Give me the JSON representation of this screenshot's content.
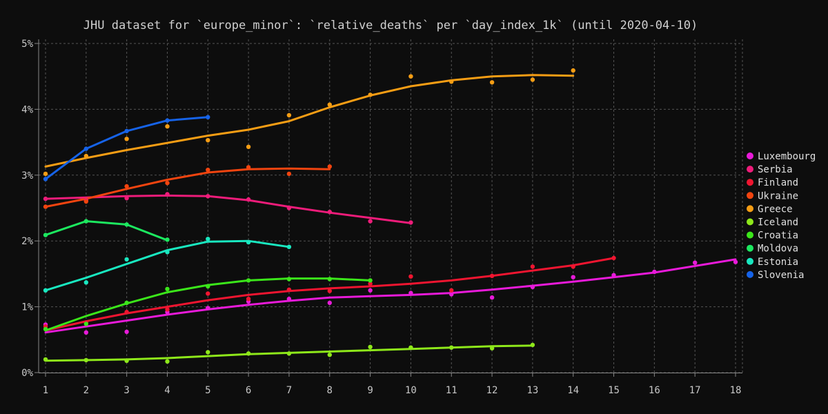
{
  "chart_data": {
    "type": "scatter",
    "title": "JHU dataset for `europe_minor`: `relative_deaths` per `day_index_1k` (until 2020-04-10)",
    "xlabel": "",
    "ylabel": "",
    "xlim": [
      1,
      18
    ],
    "ylim": [
      0,
      5
    ],
    "x_ticks": [
      "1",
      "2",
      "3",
      "4",
      "5",
      "6",
      "7",
      "8",
      "9",
      "10",
      "11",
      "12",
      "13",
      "14",
      "15",
      "16",
      "17",
      "18"
    ],
    "y_ticks": [
      "0%",
      "1%",
      "2%",
      "3%",
      "4%",
      "5%"
    ],
    "grid": true,
    "legend_position": "right",
    "series": [
      {
        "name": "Luxembourg",
        "color": "#e81ad9",
        "points": [
          [
            1,
            0.73
          ],
          [
            2,
            0.61
          ],
          [
            3,
            0.62
          ],
          [
            4,
            0.92
          ],
          [
            5,
            0.98
          ],
          [
            6,
            1.08
          ],
          [
            7,
            1.12
          ],
          [
            8,
            1.06
          ],
          [
            9,
            1.25
          ],
          [
            10,
            1.21
          ],
          [
            11,
            1.19
          ],
          [
            12,
            1.14
          ],
          [
            13,
            1.3
          ],
          [
            14,
            1.45
          ],
          [
            15,
            1.48
          ],
          [
            16,
            1.53
          ],
          [
            17,
            1.67
          ],
          [
            18,
            1.68
          ]
        ],
        "fit": [
          [
            1,
            0.61
          ],
          [
            2,
            0.7
          ],
          [
            3,
            0.79
          ],
          [
            4,
            0.88
          ],
          [
            5,
            0.96
          ],
          [
            6,
            1.03
          ],
          [
            7,
            1.09
          ],
          [
            8,
            1.14
          ],
          [
            9,
            1.16
          ],
          [
            10,
            1.18
          ],
          [
            11,
            1.21
          ],
          [
            12,
            1.26
          ],
          [
            13,
            1.32
          ],
          [
            14,
            1.38
          ],
          [
            15,
            1.45
          ],
          [
            16,
            1.52
          ],
          [
            17,
            1.62
          ],
          [
            18,
            1.72
          ]
        ]
      },
      {
        "name": "Serbia",
        "color": "#ee1c7a",
        "points": [
          [
            1,
            2.64
          ],
          [
            2,
            2.62
          ],
          [
            3,
            2.65
          ],
          [
            4,
            2.71
          ],
          [
            5,
            2.68
          ],
          [
            6,
            2.63
          ],
          [
            7,
            2.5
          ],
          [
            8,
            2.44
          ],
          [
            9,
            2.3
          ],
          [
            10,
            2.28
          ]
        ],
        "fit": [
          [
            1,
            2.64
          ],
          [
            2,
            2.66
          ],
          [
            3,
            2.68
          ],
          [
            4,
            2.69
          ],
          [
            5,
            2.68
          ],
          [
            6,
            2.62
          ],
          [
            7,
            2.52
          ],
          [
            8,
            2.43
          ],
          [
            9,
            2.35
          ],
          [
            10,
            2.27
          ]
        ]
      },
      {
        "name": "Finland",
        "color": "#f01530",
        "points": [
          [
            1,
            0.7
          ],
          [
            2,
            0.76
          ],
          [
            3,
            0.92
          ],
          [
            4,
            0.96
          ],
          [
            5,
            1.2
          ],
          [
            6,
            1.12
          ],
          [
            7,
            1.26
          ],
          [
            8,
            1.24
          ],
          [
            9,
            1.35
          ],
          [
            10,
            1.46
          ],
          [
            11,
            1.25
          ],
          [
            12,
            1.47
          ],
          [
            13,
            1.61
          ],
          [
            14,
            1.61
          ],
          [
            15,
            1.74
          ]
        ],
        "fit": [
          [
            1,
            0.64
          ],
          [
            2,
            0.78
          ],
          [
            3,
            0.9
          ],
          [
            4,
            1.0
          ],
          [
            5,
            1.1
          ],
          [
            6,
            1.18
          ],
          [
            7,
            1.24
          ],
          [
            8,
            1.28
          ],
          [
            9,
            1.31
          ],
          [
            10,
            1.35
          ],
          [
            11,
            1.4
          ],
          [
            12,
            1.47
          ],
          [
            13,
            1.55
          ],
          [
            14,
            1.63
          ],
          [
            15,
            1.74
          ]
        ]
      },
      {
        "name": "Ukraine",
        "color": "#f2440f",
        "points": [
          [
            1,
            2.52
          ],
          [
            2,
            2.6
          ],
          [
            3,
            2.83
          ],
          [
            4,
            2.88
          ],
          [
            5,
            3.08
          ],
          [
            6,
            3.12
          ],
          [
            7,
            3.02
          ],
          [
            8,
            3.13
          ]
        ],
        "fit": [
          [
            1,
            2.52
          ],
          [
            2,
            2.64
          ],
          [
            3,
            2.79
          ],
          [
            4,
            2.93
          ],
          [
            5,
            3.04
          ],
          [
            6,
            3.09
          ],
          [
            7,
            3.1
          ],
          [
            8,
            3.09
          ]
        ]
      },
      {
        "name": "Greece",
        "color": "#f59d14",
        "points": [
          [
            1,
            3.02
          ],
          [
            2,
            3.29
          ],
          [
            3,
            3.55
          ],
          [
            4,
            3.74
          ],
          [
            5,
            3.53
          ],
          [
            6,
            3.43
          ],
          [
            7,
            3.91
          ],
          [
            8,
            4.07
          ],
          [
            9,
            4.22
          ],
          [
            10,
            4.5
          ],
          [
            11,
            4.42
          ],
          [
            12,
            4.41
          ],
          [
            13,
            4.45
          ],
          [
            14,
            4.59
          ]
        ],
        "fit": [
          [
            1,
            3.13
          ],
          [
            2,
            3.26
          ],
          [
            3,
            3.38
          ],
          [
            4,
            3.49
          ],
          [
            5,
            3.6
          ],
          [
            6,
            3.69
          ],
          [
            7,
            3.82
          ],
          [
            8,
            4.03
          ],
          [
            9,
            4.21
          ],
          [
            10,
            4.35
          ],
          [
            11,
            4.44
          ],
          [
            12,
            4.5
          ],
          [
            13,
            4.52
          ],
          [
            14,
            4.51
          ]
        ]
      },
      {
        "name": "Iceland",
        "color": "#8ee81a",
        "points": [
          [
            1,
            0.2
          ],
          [
            2,
            0.19
          ],
          [
            3,
            0.18
          ],
          [
            4,
            0.17
          ],
          [
            5,
            0.31
          ],
          [
            6,
            0.29
          ],
          [
            7,
            0.29
          ],
          [
            8,
            0.27
          ],
          [
            9,
            0.39
          ],
          [
            10,
            0.38
          ],
          [
            11,
            0.38
          ],
          [
            12,
            0.37
          ],
          [
            13,
            0.42
          ]
        ],
        "fit": [
          [
            1,
            0.18
          ],
          [
            2,
            0.19
          ],
          [
            3,
            0.2
          ],
          [
            4,
            0.22
          ],
          [
            5,
            0.25
          ],
          [
            6,
            0.28
          ],
          [
            7,
            0.3
          ],
          [
            8,
            0.32
          ],
          [
            9,
            0.34
          ],
          [
            10,
            0.36
          ],
          [
            11,
            0.38
          ],
          [
            12,
            0.4
          ],
          [
            13,
            0.41
          ]
        ]
      },
      {
        "name": "Croatia",
        "color": "#3be61a",
        "points": [
          [
            1,
            0.66
          ],
          [
            2,
            0.74
          ],
          [
            3,
            1.06
          ],
          [
            4,
            1.27
          ],
          [
            5,
            1.31
          ],
          [
            6,
            1.4
          ],
          [
            7,
            1.42
          ],
          [
            8,
            1.42
          ],
          [
            9,
            1.4
          ]
        ],
        "fit": [
          [
            1,
            0.64
          ],
          [
            2,
            0.86
          ],
          [
            3,
            1.05
          ],
          [
            4,
            1.22
          ],
          [
            5,
            1.33
          ],
          [
            6,
            1.4
          ],
          [
            7,
            1.43
          ],
          [
            8,
            1.43
          ],
          [
            9,
            1.4
          ]
        ]
      },
      {
        "name": "Moldova",
        "color": "#1ce85f",
        "points": [
          [
            1,
            2.09
          ],
          [
            2,
            2.3
          ],
          [
            3,
            2.25
          ],
          [
            4,
            2.02
          ]
        ],
        "fit": [
          [
            1,
            2.09
          ],
          [
            2,
            2.3
          ],
          [
            3,
            2.25
          ],
          [
            4,
            2.01
          ]
        ]
      },
      {
        "name": "Estonia",
        "color": "#19e8c0",
        "points": [
          [
            1,
            1.25
          ],
          [
            2,
            1.37
          ],
          [
            3,
            1.72
          ],
          [
            4,
            1.83
          ],
          [
            5,
            2.03
          ],
          [
            6,
            1.98
          ],
          [
            7,
            1.91
          ]
        ],
        "fit": [
          [
            1,
            1.25
          ],
          [
            2,
            1.44
          ],
          [
            3,
            1.65
          ],
          [
            4,
            1.86
          ],
          [
            5,
            1.99
          ],
          [
            6,
            2.0
          ],
          [
            7,
            1.91
          ]
        ]
      },
      {
        "name": "Slovenia",
        "color": "#1663e8",
        "points": [
          [
            1,
            2.94
          ],
          [
            2,
            3.4
          ],
          [
            3,
            3.67
          ],
          [
            4,
            3.83
          ],
          [
            5,
            3.88
          ]
        ],
        "fit": [
          [
            1,
            2.94
          ],
          [
            2,
            3.4
          ],
          [
            3,
            3.67
          ],
          [
            4,
            3.83
          ],
          [
            5,
            3.88
          ]
        ]
      }
    ]
  }
}
